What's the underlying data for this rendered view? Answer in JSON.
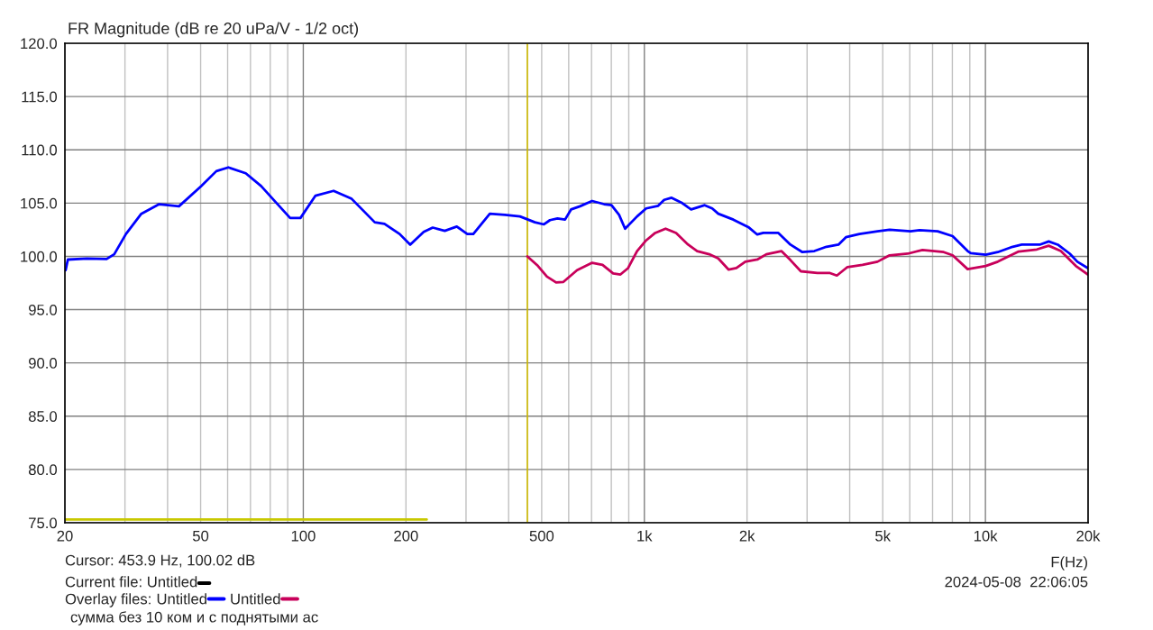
{
  "chart_data": {
    "type": "line",
    "title": "FR Magnitude (dB re 20 uPa/V - 1/2 oct)",
    "xlabel": "F(Hz)",
    "log": "x",
    "grid": true,
    "legend": "bottom left",
    "line_style": "solid",
    "marker": "none",
    "xlim": [
      20,
      20000
    ],
    "ylim": [
      75,
      120
    ],
    "xticks": [
      20,
      {
        "value": 30,
        "label": null
      },
      {
        "value": 40,
        "label": null
      },
      50,
      {
        "value": 60,
        "label": null
      },
      {
        "value": 70,
        "label": null
      },
      {
        "value": 80,
        "label": null
      },
      {
        "value": 90,
        "label": null
      },
      100,
      200,
      {
        "value": 300,
        "label": null
      },
      {
        "value": 400,
        "label": null
      },
      500,
      {
        "value": 600,
        "label": null
      },
      {
        "value": 700,
        "label": null
      },
      {
        "value": 800,
        "label": null
      },
      {
        "value": 900,
        "label": null
      },
      {
        "value": 1000,
        "label": "1k"
      },
      {
        "value": 2000,
        "label": "2k"
      },
      {
        "value": 3000,
        "label": null
      },
      {
        "value": 4000,
        "label": null
      },
      {
        "value": 5000,
        "label": "5k"
      },
      {
        "value": 6000,
        "label": null
      },
      {
        "value": 7000,
        "label": null
      },
      {
        "value": 8000,
        "label": null
      },
      {
        "value": 9000,
        "label": null
      },
      {
        "value": 10000,
        "label": "10k"
      },
      {
        "value": 20000,
        "label": "20k"
      }
    ],
    "yticks": [
      {
        "value": 75,
        "label": "75.0"
      },
      {
        "value": 80,
        "label": "80.0"
      },
      {
        "value": 85,
        "label": "85.0"
      },
      {
        "value": 90,
        "label": "90.0"
      },
      {
        "value": 95,
        "label": "95.0"
      },
      {
        "value": 100,
        "label": "100.0"
      },
      {
        "value": 105,
        "label": "105.0"
      },
      {
        "value": 110,
        "label": "110.0"
      },
      {
        "value": 115,
        "label": "115.0"
      },
      {
        "value": 120,
        "label": "120.0"
      }
    ],
    "ref_lines": [
      {
        "axis": "x",
        "value": 453.9,
        "color": "#c8b400"
      }
    ],
    "annotations": [
      "Cursor: 453.9 Hz, 100.02 dB",
      "Current file: Untitled",
      "Overlay files:",
      "сумма без 10 ком и с поднятыми ас",
      "2024-05-08  22:06:05"
    ],
    "series": [
      {
        "name": "Untitled",
        "color": "#0000ff",
        "x": [
          20.1,
          20.4,
          23.2,
          26.5,
          27.9,
          30.2,
          33.5,
          37.8,
          43.2,
          50.2,
          55.6,
          60.3,
          67.8,
          75.2,
          83.5,
          91.5,
          98.1,
          108.6,
          122.7,
          138.6,
          162,
          173,
          191.6,
          205.8,
          225.5,
          239.6,
          259.9,
          281.9,
          302.5,
          315.1,
          352.3,
          390,
          431.8,
          477.5,
          507.6,
          528.7,
          556,
          585.4,
          609.5,
          647.6,
          702.6,
          761.7,
          801,
          843,
          878,
          952,
          1012,
          1098,
          1143,
          1202,
          1291,
          1371,
          1503,
          1581,
          1647,
          1823,
          2017,
          2143,
          2232,
          2471,
          2681,
          2906,
          3151,
          3419,
          3707,
          3899,
          4272,
          4825,
          5236,
          6032,
          6410,
          7244,
          8015,
          8870,
          9057,
          10020,
          10870,
          12020,
          12780,
          14430,
          15330,
          16300,
          17680,
          18600,
          19970
        ],
        "values": [
          98.7,
          99.7,
          99.8,
          99.75,
          100.2,
          102.1,
          104.0,
          104.9,
          104.7,
          106.6,
          108.0,
          108.35,
          107.8,
          106.6,
          105.0,
          103.6,
          103.6,
          105.7,
          106.15,
          105.4,
          103.2,
          103.05,
          102.1,
          101.1,
          102.3,
          102.7,
          102.4,
          102.8,
          102.1,
          102.1,
          104.0,
          103.9,
          103.75,
          103.2,
          103.0,
          103.4,
          103.55,
          103.45,
          104.4,
          104.7,
          105.2,
          104.9,
          104.8,
          103.9,
          102.6,
          103.75,
          104.5,
          104.75,
          105.3,
          105.5,
          105.0,
          104.4,
          104.8,
          104.5,
          104.0,
          103.45,
          102.75,
          102.05,
          102.2,
          102.2,
          101.1,
          100.4,
          100.5,
          100.9,
          101.1,
          101.8,
          102.1,
          102.35,
          102.5,
          102.35,
          102.45,
          102.35,
          101.9,
          100.5,
          100.3,
          100.15,
          100.4,
          100.9,
          101.1,
          101.1,
          101.4,
          101.1,
          100.25,
          99.5,
          98.9
        ]
      },
      {
        "name": "Untitled",
        "color": "#c8005a",
        "x": [
          453.9,
          487.5,
          518,
          551,
          579,
          635,
          703,
          754,
          810,
          851,
          896,
          952,
          1012,
          1076,
          1154,
          1239,
          1344,
          1428,
          1550,
          1647,
          1767,
          1861,
          1977,
          2143,
          2279,
          2522,
          2681,
          2876,
          3217,
          3488,
          3668,
          3940,
          4361,
          4825,
          5236,
          5914,
          6540,
          7546,
          8015,
          8870,
          10020,
          10870,
          12520,
          14150,
          15330,
          16640,
          18410,
          19970
        ],
        "values": [
          100.0,
          99.1,
          98.1,
          97.55,
          97.6,
          98.7,
          99.4,
          99.2,
          98.4,
          98.3,
          98.9,
          100.5,
          101.5,
          102.2,
          102.6,
          102.2,
          101.1,
          100.5,
          100.2,
          99.8,
          98.75,
          98.9,
          99.5,
          99.7,
          100.2,
          100.5,
          99.65,
          98.6,
          98.45,
          98.45,
          98.2,
          99.0,
          99.2,
          99.5,
          100.1,
          100.25,
          100.6,
          100.4,
          100.1,
          98.8,
          99.1,
          99.5,
          100.45,
          100.65,
          101.0,
          100.5,
          99.1,
          98.3
        ]
      },
      {
        "color": "#c8c800",
        "x": [
          20,
          230
        ],
        "values": [
          75.3,
          75.3
        ]
      }
    ]
  }
}
